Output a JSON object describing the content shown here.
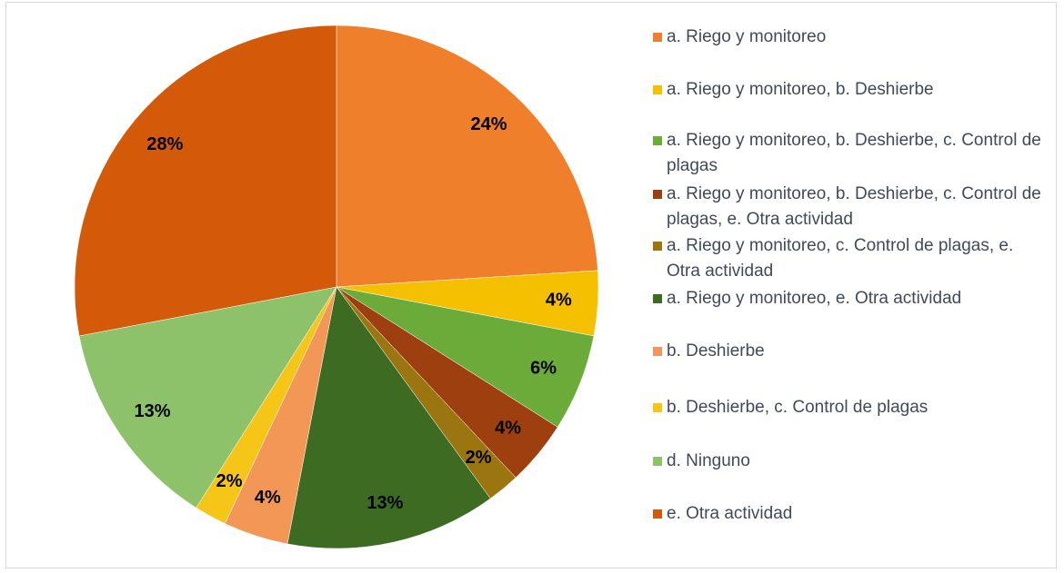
{
  "chart_data": {
    "type": "pie",
    "categories": [
      "a. Riego y monitoreo",
      "a. Riego y monitoreo, b. Deshierbe",
      "a. Riego y monitoreo, b. Deshierbe, c. Control de plagas",
      "a. Riego y monitoreo, b. Deshierbe, c. Control de plagas, e. Otra actividad",
      "a. Riego y monitoreo, c. Control de plagas, e. Otra actividad",
      "a. Riego y monitoreo, e. Otra actividad",
      "b. Deshierbe",
      "b. Deshierbe, c. Control de plagas",
      "d. Ninguno",
      "e. Otra actividad"
    ],
    "values": [
      24,
      4,
      6,
      4,
      2,
      13,
      4,
      2,
      13,
      28
    ],
    "value_labels": [
      "24%",
      "4%",
      "6%",
      "4%",
      "2%",
      "13%",
      "4%",
      "2%",
      "13%",
      "28%"
    ],
    "colors": [
      "#f07f2c",
      "#f5c000",
      "#6aab3a",
      "#9e3f0f",
      "#9a7510",
      "#3e6b22",
      "#f29755",
      "#f5c518",
      "#8dc26a",
      "#d35a08"
    ],
    "legend": "right"
  }
}
